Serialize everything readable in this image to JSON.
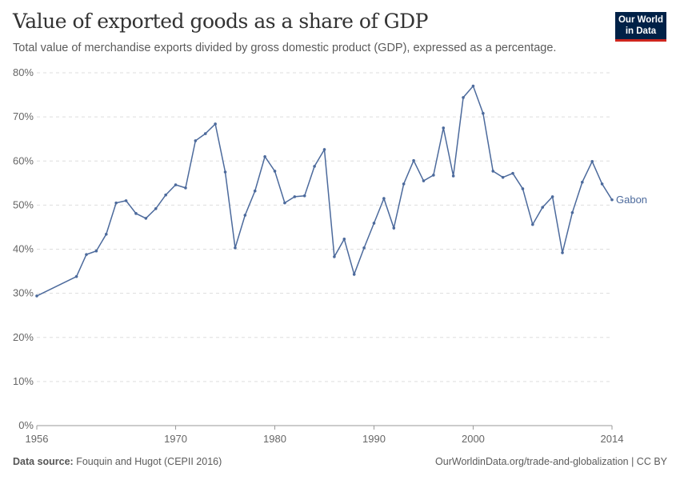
{
  "header": {
    "title": "Value of exported goods as a share of GDP",
    "subtitle": "Total value of merchandise exports divided by gross domestic product (GDP), expressed as a percentage.",
    "logo": "Our World in Data"
  },
  "footer": {
    "source_label": "Data source:",
    "source": "Fouquin and Hugot (CEPII 2016)",
    "url": "OurWorldinData.org/trade-and-globalization | CC BY"
  },
  "chart_data": {
    "type": "line",
    "title": "Value of exported goods as a share of GDP",
    "ylim": [
      0,
      80
    ],
    "yticks": [
      "0%",
      "10%",
      "20%",
      "30%",
      "40%",
      "50%",
      "60%",
      "70%",
      "80%"
    ],
    "xticks": [
      "1956",
      "1970",
      "1980",
      "1990",
      "2000",
      "2014"
    ],
    "grid": true,
    "color": "#4c6a9c",
    "series": [
      {
        "name": "Gabon",
        "x": [
          1956,
          1960,
          1961,
          1962,
          1963,
          1964,
          1965,
          1966,
          1967,
          1968,
          1969,
          1970,
          1971,
          1972,
          1973,
          1974,
          1975,
          1976,
          1977,
          1978,
          1979,
          1980,
          1981,
          1982,
          1983,
          1984,
          1985,
          1986,
          1987,
          1988,
          1989,
          1990,
          1991,
          1992,
          1993,
          1994,
          1995,
          1996,
          1997,
          1998,
          1999,
          2000,
          2001,
          2002,
          2003,
          2004,
          2005,
          2006,
          2007,
          2008,
          2009,
          2010,
          2011,
          2012,
          2013,
          2014
        ],
        "y": [
          29.4,
          33.8,
          38.8,
          39.6,
          43.4,
          50.5,
          51.0,
          48.1,
          47.0,
          49.2,
          52.3,
          54.6,
          53.9,
          64.6,
          66.2,
          68.4,
          57.5,
          40.3,
          47.7,
          53.2,
          61.0,
          57.7,
          50.5,
          51.9,
          52.1,
          58.8,
          62.6,
          38.3,
          42.3,
          34.3,
          40.3,
          45.9,
          51.5,
          44.8,
          54.8,
          60.1,
          55.5,
          56.8,
          67.5,
          56.6,
          74.4,
          77.0,
          70.8,
          57.7,
          56.3,
          57.2,
          53.7,
          45.6,
          49.5,
          51.9,
          39.2,
          48.3,
          55.2,
          59.9,
          54.8,
          51.2
        ]
      }
    ]
  }
}
